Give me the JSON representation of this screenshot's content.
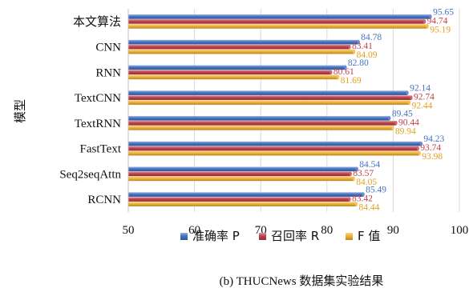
{
  "chart_data": {
    "type": "bar",
    "orientation": "horizontal",
    "ylabel": "模型",
    "xlim": [
      50,
      100
    ],
    "xticks": [
      "50",
      "60",
      "70",
      "80",
      "90",
      "100"
    ],
    "grid": true,
    "legend_position": "bottom",
    "categories": [
      "本文算法",
      "CNN",
      "RNN",
      "TextCNN",
      "TextRNN",
      "FastText",
      "Seq2seqAttn",
      "RCNN"
    ],
    "series": [
      {
        "name": "准确率 P",
        "color": "#4472c4",
        "label_color": "#4472c4",
        "values": [
          95.65,
          84.78,
          82.8,
          92.14,
          89.45,
          94.23,
          84.54,
          85.49
        ],
        "labels": [
          "95.65",
          "84.78",
          "82.80",
          "92.14",
          "89.45",
          "94.23",
          "84.54",
          "85.49"
        ]
      },
      {
        "name": "召回率 R",
        "color": "#c0404a",
        "label_color": "#c0404a",
        "values": [
          94.74,
          83.41,
          80.61,
          92.74,
          90.44,
          93.74,
          83.57,
          83.42
        ],
        "labels": [
          "94.74",
          "83.41",
          "80.61",
          "92.74",
          "90.44",
          "93.74",
          "83.57",
          "83.42"
        ]
      },
      {
        "name": "F 值",
        "color": "#f2b233",
        "label_color": "#e0a020",
        "values": [
          95.19,
          84.09,
          81.69,
          92.44,
          89.94,
          93.98,
          84.05,
          84.44
        ],
        "labels": [
          "95.19",
          "84.09",
          "81.69",
          "92.44",
          "89.94",
          "93.98",
          "84.05",
          "84.44"
        ]
      }
    ]
  },
  "caption": "(b) THUCNews 数据集实验结果"
}
